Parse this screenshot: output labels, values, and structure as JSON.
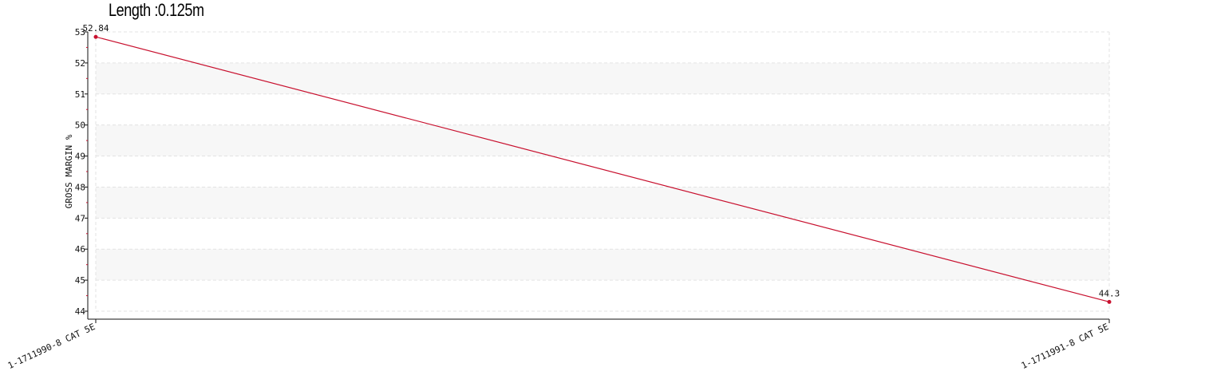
{
  "title": "Length :0.125m",
  "chart_data": {
    "type": "line",
    "title": "Length :0.125m",
    "categories": [
      "1-1711990-8 CAT 5E",
      "1-1711991-8 CAT 5E"
    ],
    "series": [
      {
        "values": [
          52.84,
          44.3
        ],
        "color": "#c8102e"
      }
    ],
    "data_labels": [
      "52.84",
      "44.3"
    ],
    "xlabel": "",
    "ylabel": "GROSS MARGIN %",
    "ylim": [
      44,
      53
    ],
    "yticks": [
      44,
      45,
      46,
      47,
      48,
      49,
      50,
      51,
      52,
      53
    ],
    "grid": true,
    "band_color": "#f7f7f7",
    "legend": "none"
  }
}
